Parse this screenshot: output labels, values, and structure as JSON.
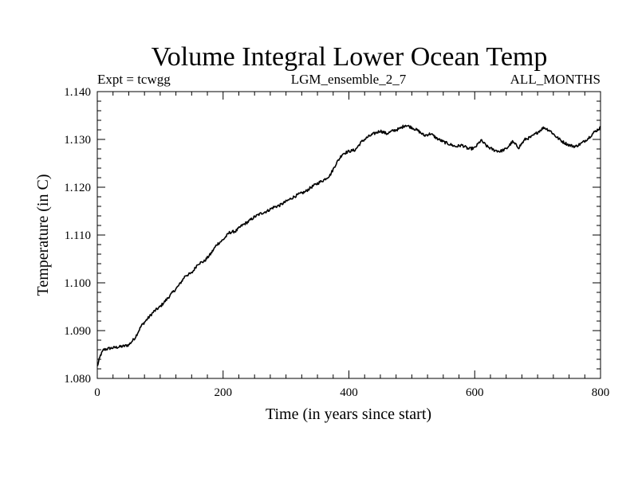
{
  "chart_data": {
    "type": "line",
    "title": "Volume Integral Lower Ocean Temp",
    "subtitle_left": "Expt = tcwgg",
    "subtitle_center": "LGM_ensemble_2_7",
    "subtitle_right": "ALL_MONTHS",
    "xlabel": "Time (in years since start)",
    "ylabel": "Temperature (in C)",
    "xlim": [
      0,
      800
    ],
    "ylim": [
      1.08,
      1.14
    ],
    "xticks": [
      0,
      200,
      400,
      600,
      800
    ],
    "xtick_labels": [
      "0",
      "200",
      "400",
      "600",
      "800"
    ],
    "yticks": [
      1.08,
      1.09,
      1.1,
      1.11,
      1.12,
      1.13,
      1.14
    ],
    "ytick_labels": [
      "1.080",
      "1.090",
      "1.100",
      "1.110",
      "1.120",
      "1.130",
      "1.140"
    ],
    "grid": false,
    "series": [
      {
        "name": "Volume Integral Lower Ocean Temp",
        "color": "#000000",
        "x": [
          0,
          5,
          10,
          20,
          30,
          40,
          50,
          60,
          70,
          80,
          90,
          100,
          110,
          120,
          130,
          140,
          150,
          160,
          170,
          180,
          190,
          200,
          210,
          220,
          230,
          240,
          250,
          260,
          270,
          280,
          290,
          300,
          310,
          320,
          330,
          340,
          350,
          360,
          370,
          380,
          390,
          400,
          410,
          420,
          430,
          440,
          450,
          460,
          470,
          480,
          490,
          500,
          510,
          520,
          530,
          540,
          550,
          560,
          570,
          580,
          590,
          600,
          610,
          620,
          630,
          640,
          650,
          660,
          670,
          680,
          690,
          700,
          710,
          720,
          730,
          740,
          750,
          760,
          770,
          780,
          790,
          800
        ],
        "values": [
          1.0825,
          1.0848,
          1.086,
          1.0863,
          1.0865,
          1.0867,
          1.087,
          1.0885,
          1.091,
          1.0925,
          1.094,
          1.095,
          1.0965,
          1.098,
          1.0995,
          1.1015,
          1.102,
          1.104,
          1.1045,
          1.106,
          1.108,
          1.109,
          1.1105,
          1.1108,
          1.112,
          1.1128,
          1.1138,
          1.1145,
          1.115,
          1.1158,
          1.1162,
          1.117,
          1.1178,
          1.1185,
          1.119,
          1.12,
          1.1208,
          1.1215,
          1.1225,
          1.125,
          1.127,
          1.1275,
          1.1278,
          1.1295,
          1.1305,
          1.1312,
          1.1318,
          1.1312,
          1.1318,
          1.1322,
          1.133,
          1.1325,
          1.1318,
          1.1308,
          1.1312,
          1.1302,
          1.1295,
          1.129,
          1.1285,
          1.1288,
          1.128,
          1.1282,
          1.1298,
          1.1285,
          1.1278,
          1.1275,
          1.128,
          1.1295,
          1.1283,
          1.13,
          1.1305,
          1.1315,
          1.1325,
          1.1318,
          1.1305,
          1.1295,
          1.1288,
          1.1285,
          1.1292,
          1.1302,
          1.1315,
          1.1325
        ]
      }
    ]
  }
}
